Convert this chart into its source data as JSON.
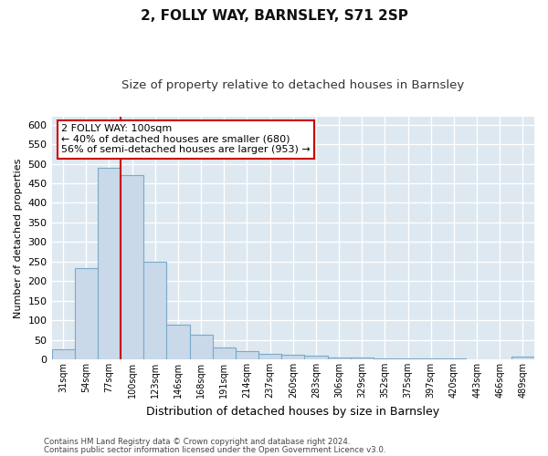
{
  "title": "2, FOLLY WAY, BARNSLEY, S71 2SP",
  "subtitle": "Size of property relative to detached houses in Barnsley",
  "xlabel": "Distribution of detached houses by size in Barnsley",
  "ylabel": "Number of detached properties",
  "footer1": "Contains HM Land Registry data © Crown copyright and database right 2024.",
  "footer2": "Contains public sector information licensed under the Open Government Licence v3.0.",
  "categories": [
    "31sqm",
    "54sqm",
    "77sqm",
    "100sqm",
    "123sqm",
    "146sqm",
    "168sqm",
    "191sqm",
    "214sqm",
    "237sqm",
    "260sqm",
    "283sqm",
    "306sqm",
    "329sqm",
    "352sqm",
    "375sqm",
    "397sqm",
    "420sqm",
    "443sqm",
    "466sqm",
    "489sqm"
  ],
  "values": [
    25,
    232,
    490,
    470,
    250,
    88,
    63,
    30,
    22,
    14,
    12,
    10,
    5,
    5,
    3,
    3,
    3,
    3,
    1,
    1,
    6
  ],
  "bar_color": "#c9d9ea",
  "bar_edge_color": "#7aaac8",
  "property_bar_index": 3,
  "property_line_color": "#cc0000",
  "annotation_line1": "2 FOLLY WAY: 100sqm",
  "annotation_line2": "← 40% of detached houses are smaller (680)",
  "annotation_line3": "56% of semi-detached houses are larger (953) →",
  "annotation_box_edgecolor": "#cc0000",
  "ylim_max": 620,
  "yticks": [
    0,
    50,
    100,
    150,
    200,
    250,
    300,
    350,
    400,
    450,
    500,
    550,
    600
  ],
  "fig_bg_color": "#ffffff",
  "plot_bg_color": "#dde8f0",
  "grid_color": "#ffffff",
  "title_fontsize": 11,
  "subtitle_fontsize": 9.5,
  "ylabel_fontsize": 8,
  "xlabel_fontsize": 9,
  "ytick_fontsize": 8,
  "xtick_fontsize": 7,
  "annotation_fontsize": 8,
  "footer_fontsize": 6.2
}
